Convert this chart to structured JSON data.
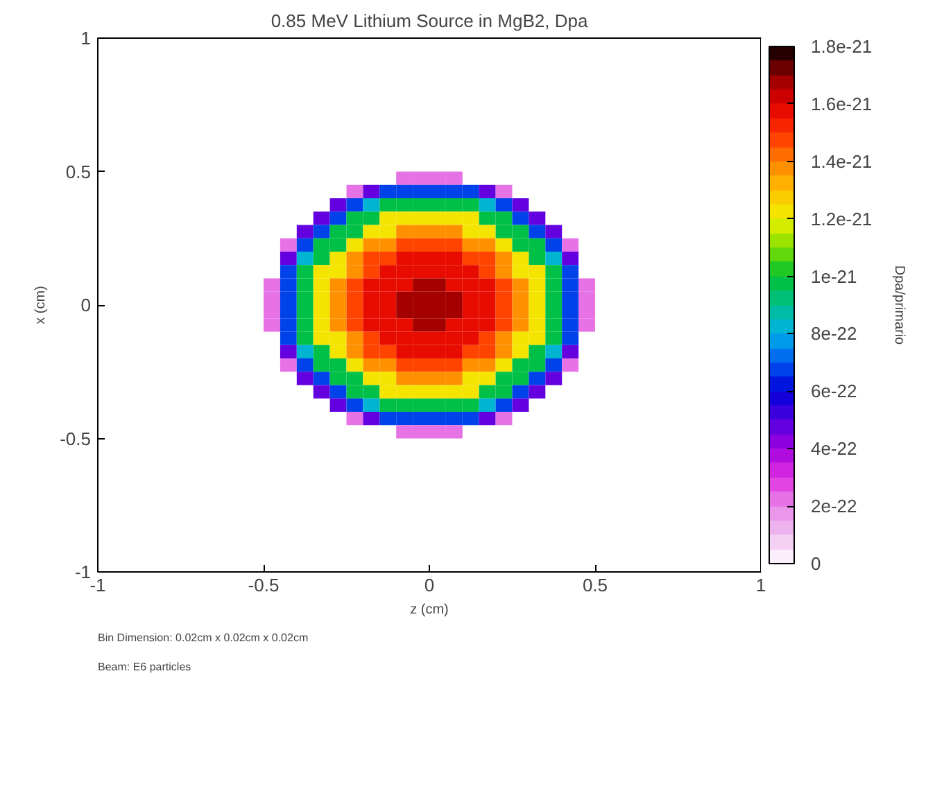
{
  "chart_data": {
    "type": "heatmap",
    "title": "0.85 MeV Lithium Source in MgB2, Dpa",
    "xlabel": "z (cm)",
    "ylabel": "x (cm)",
    "clabel": "Dpa/primario",
    "annotations": [
      "Bin Dimension: 0.02cm x 0.02cm x 0.02cm",
      "Beam: E6 particles"
    ],
    "xlim": [
      -1,
      1
    ],
    "ylim": [
      -1,
      1
    ],
    "xticks": [
      -1,
      -0.5,
      0,
      0.5,
      1
    ],
    "yticks": [
      -1,
      -0.5,
      0,
      0.5,
      1
    ],
    "x": [
      -0.475,
      -0.425,
      -0.375,
      -0.325,
      -0.275,
      -0.225,
      -0.175,
      -0.125,
      -0.075,
      -0.025,
      0.025,
      0.075,
      0.125,
      0.175,
      0.225,
      0.275,
      0.325,
      0.375,
      0.425,
      0.475
    ],
    "y": [
      0.475,
      0.425,
      0.375,
      0.325,
      0.275,
      0.225,
      0.175,
      0.125,
      0.075,
      0.025,
      -0.025,
      -0.075,
      -0.125,
      -0.175,
      -0.225,
      -0.275,
      -0.325,
      -0.375,
      -0.425,
      -0.475
    ],
    "clim": [
      0,
      1.8e-21
    ],
    "cticks": [
      0,
      {
        "value": 2e-22,
        "label": "2e-22"
      },
      {
        "value": 4e-22,
        "label": "4e-22"
      },
      {
        "value": 6e-22,
        "label": "6e-22"
      },
      {
        "value": 8e-22,
        "label": "8e-22"
      },
      {
        "value": 1e-21,
        "label": "1e-21"
      },
      {
        "value": 1.2e-21,
        "label": "1.2e-21"
      },
      {
        "value": 1.4e-21,
        "label": "1.4e-21"
      },
      {
        "value": 1.6e-21,
        "label": "1.6e-21"
      },
      {
        "value": 1.8e-21,
        "label": "1.8e-21"
      }
    ],
    "colors": [
      "#ffffff",
      "#f0c0f0",
      "#e888e8",
      "#e030e0",
      "#a000e0",
      "#5000e0",
      "#0000d8",
      "#0058f0",
      "#00b0e8",
      "#00c090",
      "#00c030",
      "#80e000",
      "#f0f000",
      "#ffc000",
      "#ff8000",
      "#ff3000",
      "#e00000",
      "#900000",
      "#000000"
    ],
    "cells": [
      [
        null,
        null,
        null,
        null,
        null,
        null,
        null,
        null,
        2.5e-22,
        2.5e-22,
        2.5e-22,
        2.5e-22,
        null,
        null,
        null,
        null,
        null,
        null,
        null,
        null
      ],
      [
        null,
        null,
        null,
        null,
        null,
        2.5e-22,
        4.5e-22,
        6.5e-22,
        6.5e-22,
        6.5e-22,
        6.5e-22,
        6.5e-22,
        6.5e-22,
        4.5e-22,
        2.5e-22,
        null,
        null,
        null,
        null,
        null
      ],
      [
        null,
        null,
        null,
        null,
        4.5e-22,
        6.5e-22,
        8e-22,
        1e-21,
        1e-21,
        1e-21,
        1e-21,
        1e-21,
        1e-21,
        8e-22,
        6.5e-22,
        4.5e-22,
        null,
        null,
        null,
        null
      ],
      [
        null,
        null,
        null,
        4.5e-22,
        6.5e-22,
        1e-21,
        1e-21,
        1.2e-21,
        1.2e-21,
        1.2e-21,
        1.2e-21,
        1.2e-21,
        1.2e-21,
        1e-21,
        1e-21,
        6.5e-22,
        4.5e-22,
        null,
        null,
        null
      ],
      [
        null,
        null,
        4.5e-22,
        6.5e-22,
        1e-21,
        1e-21,
        1.2e-21,
        1.2e-21,
        1.35e-21,
        1.35e-21,
        1.35e-21,
        1.35e-21,
        1.2e-21,
        1.2e-21,
        1e-21,
        1e-21,
        6.5e-22,
        4.5e-22,
        null,
        null
      ],
      [
        null,
        2.5e-22,
        6.5e-22,
        1e-21,
        1e-21,
        1.2e-21,
        1.35e-21,
        1.35e-21,
        1.45e-21,
        1.45e-21,
        1.45e-21,
        1.45e-21,
        1.35e-21,
        1.35e-21,
        1.2e-21,
        1e-21,
        1e-21,
        6.5e-22,
        2.5e-22,
        null
      ],
      [
        null,
        4.5e-22,
        8e-22,
        1e-21,
        1.2e-21,
        1.35e-21,
        1.45e-21,
        1.45e-21,
        1.55e-21,
        1.55e-21,
        1.55e-21,
        1.55e-21,
        1.45e-21,
        1.45e-21,
        1.35e-21,
        1.2e-21,
        1e-21,
        8e-22,
        4.5e-22,
        null
      ],
      [
        null,
        6.5e-22,
        1e-21,
        1.2e-21,
        1.2e-21,
        1.35e-21,
        1.45e-21,
        1.55e-21,
        1.55e-21,
        1.55e-21,
        1.55e-21,
        1.55e-21,
        1.55e-21,
        1.45e-21,
        1.35e-21,
        1.2e-21,
        1.2e-21,
        1e-21,
        6.5e-22,
        null
      ],
      [
        2.5e-22,
        6.5e-22,
        1e-21,
        1.2e-21,
        1.35e-21,
        1.45e-21,
        1.55e-21,
        1.55e-21,
        1.55e-21,
        1.65e-21,
        1.65e-21,
        1.55e-21,
        1.55e-21,
        1.55e-21,
        1.45e-21,
        1.35e-21,
        1.2e-21,
        1e-21,
        6.5e-22,
        2.5e-22
      ],
      [
        2.5e-22,
        6.5e-22,
        1e-21,
        1.2e-21,
        1.35e-21,
        1.45e-21,
        1.55e-21,
        1.55e-21,
        1.65e-21,
        1.65e-21,
        1.65e-21,
        1.65e-21,
        1.55e-21,
        1.55e-21,
        1.45e-21,
        1.35e-21,
        1.2e-21,
        1e-21,
        6.5e-22,
        2.5e-22
      ],
      [
        2.5e-22,
        6.5e-22,
        1e-21,
        1.2e-21,
        1.35e-21,
        1.45e-21,
        1.55e-21,
        1.55e-21,
        1.65e-21,
        1.65e-21,
        1.65e-21,
        1.65e-21,
        1.55e-21,
        1.55e-21,
        1.45e-21,
        1.35e-21,
        1.2e-21,
        1e-21,
        6.5e-22,
        2.5e-22
      ],
      [
        2.5e-22,
        6.5e-22,
        1e-21,
        1.2e-21,
        1.35e-21,
        1.45e-21,
        1.55e-21,
        1.55e-21,
        1.55e-21,
        1.65e-21,
        1.65e-21,
        1.55e-21,
        1.55e-21,
        1.55e-21,
        1.45e-21,
        1.35e-21,
        1.2e-21,
        1e-21,
        6.5e-22,
        2.5e-22
      ],
      [
        null,
        6.5e-22,
        1e-21,
        1.2e-21,
        1.2e-21,
        1.35e-21,
        1.45e-21,
        1.55e-21,
        1.55e-21,
        1.55e-21,
        1.55e-21,
        1.55e-21,
        1.55e-21,
        1.45e-21,
        1.35e-21,
        1.2e-21,
        1.2e-21,
        1e-21,
        6.5e-22,
        null
      ],
      [
        null,
        4.5e-22,
        8e-22,
        1e-21,
        1.2e-21,
        1.35e-21,
        1.45e-21,
        1.45e-21,
        1.55e-21,
        1.55e-21,
        1.55e-21,
        1.55e-21,
        1.45e-21,
        1.45e-21,
        1.35e-21,
        1.2e-21,
        1e-21,
        8e-22,
        4.5e-22,
        null
      ],
      [
        null,
        2.5e-22,
        6.5e-22,
        1e-21,
        1e-21,
        1.2e-21,
        1.35e-21,
        1.35e-21,
        1.45e-21,
        1.45e-21,
        1.45e-21,
        1.45e-21,
        1.35e-21,
        1.35e-21,
        1.2e-21,
        1e-21,
        1e-21,
        6.5e-22,
        2.5e-22,
        null
      ],
      [
        null,
        null,
        4.5e-22,
        6.5e-22,
        1e-21,
        1e-21,
        1.2e-21,
        1.2e-21,
        1.35e-21,
        1.35e-21,
        1.35e-21,
        1.35e-21,
        1.2e-21,
        1.2e-21,
        1e-21,
        1e-21,
        6.5e-22,
        4.5e-22,
        null,
        null
      ],
      [
        null,
        null,
        null,
        4.5e-22,
        6.5e-22,
        1e-21,
        1e-21,
        1.2e-21,
        1.2e-21,
        1.2e-21,
        1.2e-21,
        1.2e-21,
        1.2e-21,
        1e-21,
        1e-21,
        6.5e-22,
        4.5e-22,
        null,
        null,
        null
      ],
      [
        null,
        null,
        null,
        null,
        4.5e-22,
        6.5e-22,
        8e-22,
        1e-21,
        1e-21,
        1e-21,
        1e-21,
        1e-21,
        1e-21,
        8e-22,
        6.5e-22,
        4.5e-22,
        null,
        null,
        null,
        null
      ],
      [
        null,
        null,
        null,
        null,
        null,
        2.5e-22,
        4.5e-22,
        6.5e-22,
        6.5e-22,
        6.5e-22,
        6.5e-22,
        6.5e-22,
        6.5e-22,
        4.5e-22,
        2.5e-22,
        null,
        null,
        null,
        null,
        null
      ],
      [
        null,
        null,
        null,
        null,
        null,
        null,
        null,
        null,
        2.5e-22,
        2.5e-22,
        2.5e-22,
        2.5e-22,
        null,
        null,
        null,
        null,
        null,
        null,
        null,
        null
      ]
    ]
  }
}
